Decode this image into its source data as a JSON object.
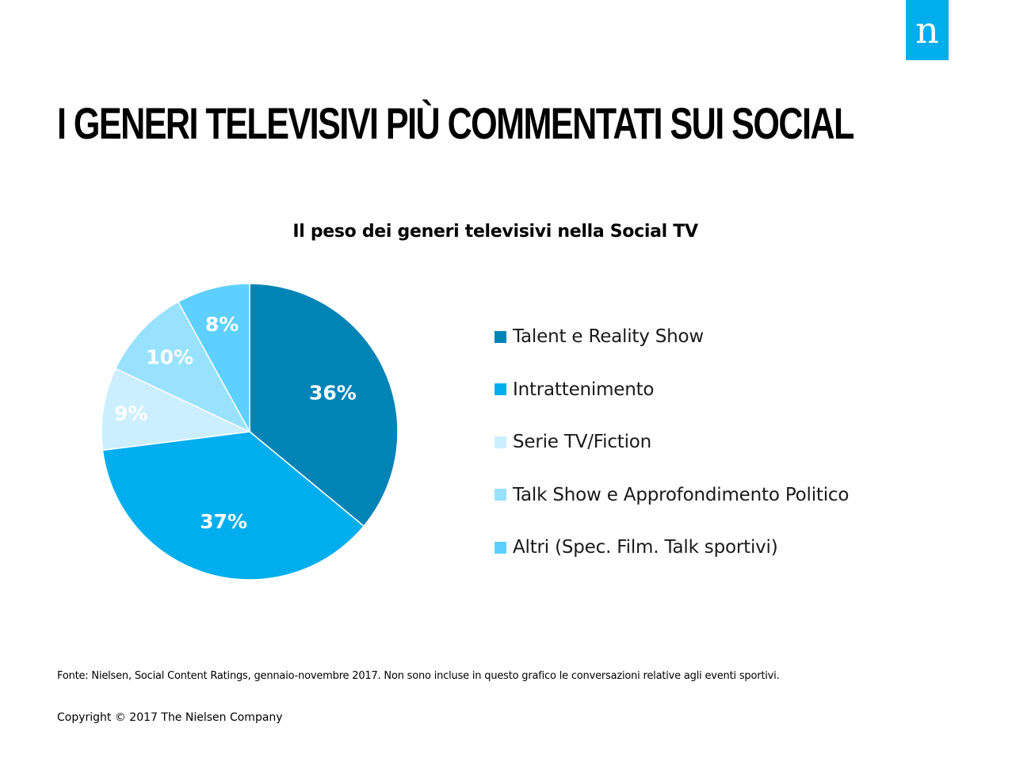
{
  "logo": {
    "letter": "n",
    "color": "#00aeef"
  },
  "title": "I generi televisivi più commentati sui social",
  "chart_data": {
    "type": "pie",
    "title": "Il peso dei generi televisivi nella Social TV",
    "legend_position": "right",
    "slices": [
      {
        "name": "Talent e Reality Show",
        "value": 36,
        "label": "36%",
        "color": "#0084b6"
      },
      {
        "name": "Intrattenimento",
        "value": 37,
        "label": "37%",
        "color": "#00aeef"
      },
      {
        "name": "Serie TV/Fiction",
        "value": 9,
        "label": "9%",
        "color": "#ccefff"
      },
      {
        "name": "Talk Show e Approfondimento Politico",
        "value": 10,
        "label": "10%",
        "color": "#99e2ff"
      },
      {
        "name": "Altri (Spec. Film. Talk sportivi)",
        "value": 8,
        "label": "8%",
        "color": "#5dd0ff"
      }
    ]
  },
  "footer": {
    "source": "Fonte: Nielsen, Social Content Ratings, gennaio-novembre 2017. Non sono incluse in questo grafico le conversazioni relative agli eventi sportivi.",
    "copyright": "Copyright © 2017 The Nielsen Company"
  }
}
